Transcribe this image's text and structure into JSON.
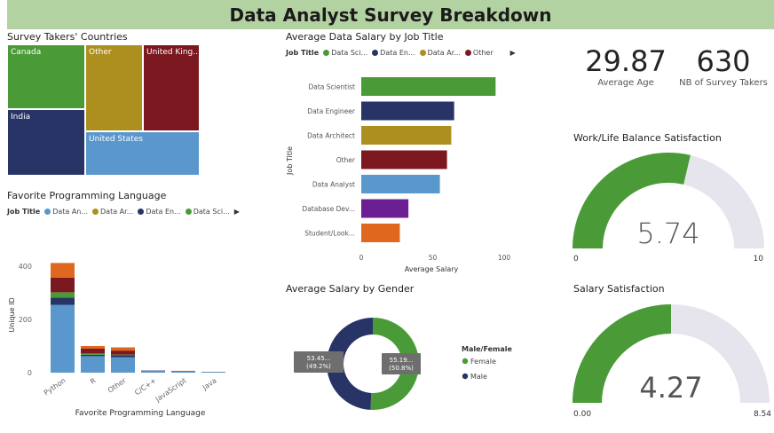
{
  "page": {
    "title": "Data Analyst Survey Breakdown"
  },
  "countries": {
    "title": "Survey Takers' Countries",
    "items": [
      {
        "label": "Canada",
        "color": "#4a9b38"
      },
      {
        "label": "Other",
        "color": "#ad8f20"
      },
      {
        "label": "United King...",
        "color": "#7b1820"
      },
      {
        "label": "India",
        "color": "#283466"
      },
      {
        "label": "United States",
        "color": "#5a97cc"
      }
    ]
  },
  "prog_lang": {
    "title": "Favorite Programming Language",
    "legend_title": "Job Title",
    "legend": [
      {
        "label": "Data An...",
        "color": "#5a97cc"
      },
      {
        "label": "Data Ar...",
        "color": "#ad8f20"
      },
      {
        "label": "Data En...",
        "color": "#283466"
      },
      {
        "label": "Data Sci...",
        "color": "#4a9b38"
      }
    ]
  },
  "salary_job": {
    "title": "Average Data Salary by Job Title",
    "legend_title": "Job Title",
    "legend": [
      {
        "label": "Data Sci...",
        "color": "#4a9b38"
      },
      {
        "label": "Data En...",
        "color": "#283466"
      },
      {
        "label": "Data Ar...",
        "color": "#ad8f20"
      },
      {
        "label": "Other",
        "color": "#7b1820"
      }
    ]
  },
  "salary_gender": {
    "title": "Average Salary by Gender",
    "legend_title": "Male/Female"
  },
  "kpis": [
    {
      "value": "29.87",
      "label": "Average Age"
    },
    {
      "value": "630",
      "label": "NB of  Survey Takers"
    }
  ],
  "work_life": {
    "title": "Work/Life Balance Satisfaction",
    "value": "5.74",
    "min": "0",
    "max": "10"
  },
  "salary_sat": {
    "title": "Salary Satisfaction",
    "value": "4.27",
    "min": "0.00",
    "max": "8.54"
  },
  "ui": {
    "more_arrow": "▶"
  },
  "chart_data": [
    {
      "id": "countries",
      "type": "treemap",
      "title": "Survey Takers' Countries",
      "categories": [
        "Canada",
        "Other",
        "United King...",
        "India",
        "United States"
      ]
    },
    {
      "id": "prog_lang",
      "type": "bar",
      "stacked": true,
      "title": "Favorite Programming Language",
      "xlabel": "Favorite Programming Language",
      "ylabel": "Unique ID",
      "ylim": [
        0,
        440
      ],
      "yticks": [
        0,
        200,
        400
      ],
      "categories": [
        "Python",
        "R",
        "Other",
        "C/C++",
        "JavaScript",
        "Java"
      ],
      "series": [
        {
          "name": "Data An...",
          "color": "#5a97cc",
          "values": [
            255,
            62,
            58,
            6,
            4,
            2
          ]
        },
        {
          "name": "Data En...",
          "color": "#283466",
          "values": [
            27,
            5,
            7,
            2,
            1,
            1
          ]
        },
        {
          "name": "Data Sci...",
          "color": "#4a9b38",
          "values": [
            20,
            5,
            3,
            0,
            0,
            0
          ]
        },
        {
          "color": "#7b1820",
          "values": [
            55,
            18,
            15,
            0,
            1,
            0
          ]
        },
        {
          "color": "#e0681e",
          "values": [
            55,
            10,
            12,
            0,
            1,
            0
          ]
        }
      ]
    },
    {
      "id": "salary_job",
      "type": "bar",
      "orientation": "horizontal",
      "title": "Average Data Salary by Job Title",
      "xlabel": "Average Salary",
      "ylabel": "Job Title",
      "xlim": [
        0,
        100
      ],
      "xticks": [
        0,
        50,
        100
      ],
      "categories": [
        "Data Scientist",
        "Data Engineer",
        "Data Architect",
        "Other",
        "Data Analyst",
        "Database Dev...",
        "Student/Look..."
      ],
      "values": [
        94,
        65,
        63,
        60,
        55,
        33,
        27
      ],
      "colors": [
        "#4a9b38",
        "#283466",
        "#ad8f20",
        "#7b1820",
        "#5a97cc",
        "#6b1f92",
        "#e0681e"
      ]
    },
    {
      "id": "salary_gender",
      "type": "pie",
      "donut": true,
      "title": "Average Salary by Gender",
      "slices": [
        {
          "label": "Female",
          "value": 55.19,
          "percent": 50.8,
          "display": "55.19...",
          "pct_label": "(50.8%)",
          "color": "#4a9b38"
        },
        {
          "label": "Male",
          "value": 53.45,
          "percent": 49.2,
          "display": "53.45...",
          "pct_label": "(49.2%)",
          "color": "#283466"
        }
      ]
    },
    {
      "id": "work_life",
      "type": "gauge",
      "title": "Work/Life Balance Satisfaction",
      "value": 5.74,
      "min": 0,
      "max": 10,
      "color": "#4a9b38",
      "track_color": "#e6e5ee"
    },
    {
      "id": "salary_sat",
      "type": "gauge",
      "title": "Salary Satisfaction",
      "value": 4.27,
      "min": 0,
      "max": 8.54,
      "color": "#4a9b38",
      "track_color": "#e6e5ee"
    }
  ]
}
